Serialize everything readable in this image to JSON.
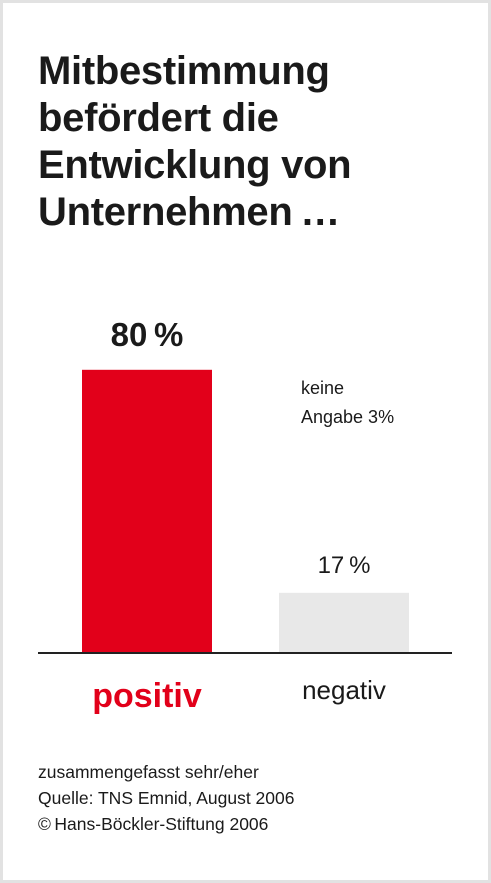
{
  "title_lines": [
    "Mitbestimmung",
    "befördert die",
    "Entwicklung von",
    "Unternehmen …"
  ],
  "chart_data": {
    "type": "bar",
    "title": "Mitbestimmung befördert die Entwicklung von Unternehmen …",
    "categories": [
      "positiv",
      "negativ"
    ],
    "values": [
      80,
      17
    ],
    "value_labels": [
      "80 %",
      "17 %"
    ],
    "unit": "%",
    "ylim": [
      0,
      100
    ],
    "grid": false,
    "annotation": {
      "lines": [
        "keine",
        "Angabe 3%"
      ],
      "value": 3
    },
    "bar_colors": [
      "#e2001a",
      "#e8e8e8"
    ],
    "label_colors": [
      "#e2001a",
      "#1a1a1a"
    ]
  },
  "footer": {
    "note": "zusammengefasst sehr/eher",
    "source": "Quelle: TNS Emnid, August 2006",
    "copyright": "© Hans-Böckler-Stiftung 2006"
  },
  "colors": {
    "accent": "#e2001a",
    "text": "#1a1a1a",
    "frame": "#e2e2e2",
    "axis": "#222222"
  }
}
